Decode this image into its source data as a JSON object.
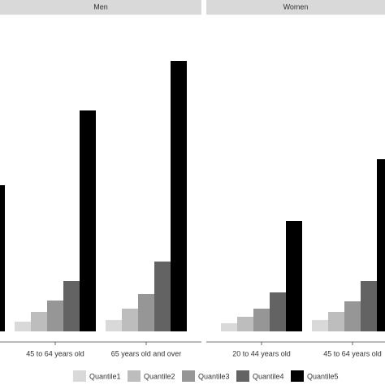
{
  "chart_data": {
    "type": "bar",
    "ylim": [
      0,
      388
    ],
    "series": [
      {
        "name": "Quantile1",
        "color": "#d9d9d9"
      },
      {
        "name": "Quantile2",
        "color": "#bdbdbd"
      },
      {
        "name": "Quantile3",
        "color": "#969696"
      },
      {
        "name": "Quantile4",
        "color": "#636363"
      },
      {
        "name": "Quantile5",
        "color": "#000000"
      }
    ],
    "facets": [
      {
        "title": "Men",
        "categories": [
          null,
          "45 to 64 years old",
          "65 years old and over"
        ],
        "series": [
          {
            "values": [
              null,
              12,
              14
            ]
          },
          {
            "values": [
              null,
              24,
              28
            ]
          },
          {
            "values": [
              null,
              38,
              46
            ]
          },
          {
            "values": [
              null,
              62,
              86
            ]
          },
          {
            "values": [
              180,
              272,
              333
            ]
          }
        ]
      },
      {
        "title": "Women",
        "categories": [
          "20 to 44 years old",
          "45 to 64 years old"
        ],
        "series": [
          {
            "values": [
              10,
              14
            ]
          },
          {
            "values": [
              18,
              24
            ]
          },
          {
            "values": [
              28,
              37
            ]
          },
          {
            "values": [
              48,
              62
            ]
          },
          {
            "values": [
              136,
              212
            ]
          }
        ]
      }
    ]
  }
}
